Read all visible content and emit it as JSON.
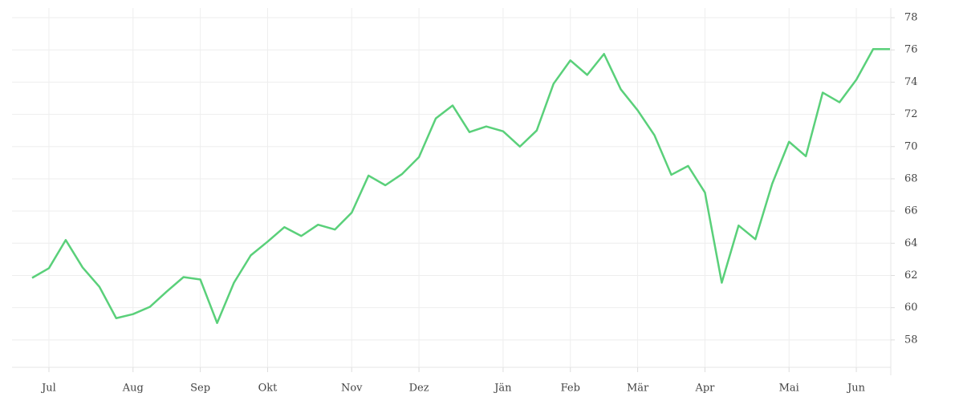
{
  "chart_data": {
    "type": "line",
    "categories": [
      null,
      "Jul",
      null,
      null,
      null,
      null,
      "Aug",
      null,
      null,
      null,
      "Sep",
      null,
      null,
      null,
      "Okt",
      null,
      null,
      null,
      null,
      "Nov",
      null,
      null,
      null,
      "Dez",
      null,
      null,
      null,
      null,
      "Jän",
      null,
      null,
      null,
      "Feb",
      null,
      null,
      null,
      "Mär",
      null,
      null,
      null,
      "Apr",
      null,
      null,
      null,
      null,
      "Mai",
      null,
      null,
      null,
      "Jun",
      null,
      null
    ],
    "series": [
      {
        "color": "#5ad07a",
        "values": [
          61.85,
          62.45,
          64.2,
          62.5,
          61.3,
          59.35,
          59.6,
          60.05,
          61.0,
          61.9,
          61.75,
          59.05,
          61.55,
          63.25,
          64.1,
          65.0,
          64.45,
          65.15,
          64.85,
          65.9,
          68.2,
          67.6,
          68.3,
          69.35,
          71.75,
          72.55,
          70.9,
          71.25,
          70.95,
          70.0,
          71.0,
          73.9,
          75.35,
          74.45,
          75.75,
          73.55,
          72.25,
          70.7,
          68.25,
          68.8,
          67.15,
          61.55,
          65.1,
          64.25,
          67.7,
          70.3,
          69.4,
          73.35,
          72.75,
          74.15,
          76.05,
          76.05
        ]
      }
    ],
    "ylim": [
      56.3,
      78.6
    ],
    "yticks": [
      58,
      60,
      62,
      64,
      66,
      68,
      70,
      72,
      74,
      76,
      78
    ],
    "grid": true
  }
}
